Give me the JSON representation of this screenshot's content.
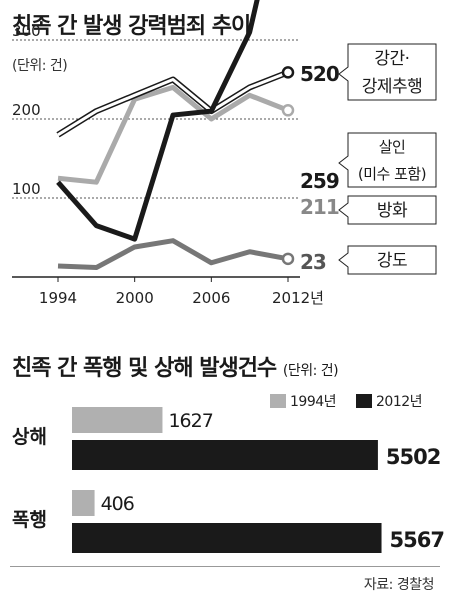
{
  "charts": {
    "line": {
      "title": "친족 간 발생 강력범죄 추이",
      "unit": "(단위: 건)",
      "chart_data": {
        "type": "line",
        "title": "친족 간 발생 강력범죄 추이",
        "unit": "(단위: 건)",
        "x": [
          1994,
          1997,
          2000,
          2003,
          2006,
          2009,
          2012
        ],
        "xticks": [
          "1994",
          "2000",
          "2006",
          "2012년"
        ],
        "ylim": [
          0,
          550
        ],
        "yticks": [
          "100",
          "200",
          "300",
          "400",
          "500"
        ],
        "grid": true,
        "series": [
          {
            "name": "강간·강제추행",
            "end_label": "520",
            "values": [
              120,
              65,
              48,
              205,
              210,
              310,
              520
            ],
            "color": "#1a1a1a",
            "style": "solid"
          },
          {
            "name": "살인 (미수 포함)",
            "end_label": "259",
            "values": [
              180,
              210,
              230,
              250,
              210,
              240,
              259
            ],
            "color": "#1a1a1a",
            "style": "outline"
          },
          {
            "name": "방화",
            "end_label": "211",
            "values": [
              125,
              120,
              225,
              240,
              200,
              230,
              211
            ],
            "color": "#aaaaaa",
            "style": "solid"
          },
          {
            "name": "강도",
            "end_label": "23",
            "values": [
              14,
              12,
              38,
              46,
              18,
              32,
              23
            ],
            "color": "#777777",
            "style": "solid"
          }
        ],
        "labels": [
          "강간·",
          "강제추행",
          "살인",
          "(미수 포함)",
          "방화",
          "강도"
        ]
      }
    },
    "bar": {
      "title": "친족 간 폭행 및 상해 발생건수",
      "unit": "(단위: 건)",
      "chart_data": {
        "type": "bar",
        "orientation": "horizontal",
        "title": "친족 간 폭행 및 상해 발생건수",
        "unit": "(단위: 건)",
        "categories": [
          "상해",
          "폭행"
        ],
        "series": [
          {
            "name": "1994년",
            "values": [
              1627,
              406
            ],
            "color": "#b0b0b0"
          },
          {
            "name": "2012년",
            "values": [
              5502,
              5567
            ],
            "color": "#1a1a1a"
          }
        ],
        "value_labels": [
          [
            "1627",
            "5502"
          ],
          [
            "406",
            "5567"
          ]
        ],
        "legend": "top-right"
      }
    }
  },
  "source": "자료: 경찰청"
}
